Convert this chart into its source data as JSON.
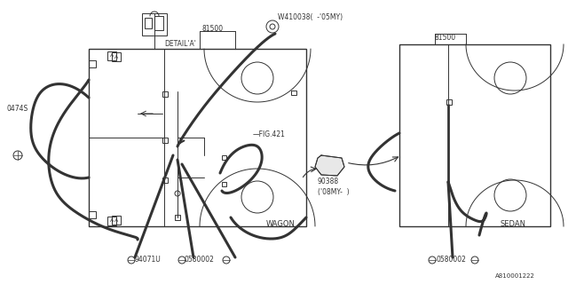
{
  "bg_color": "#ffffff",
  "lc": "#333333",
  "fig_w": 6.4,
  "fig_h": 3.2,
  "dpi": 100,
  "labels": {
    "81500_left": [
      228,
      18,
      "81500"
    ],
    "81500_right": [
      490,
      43,
      "81500"
    ],
    "W410038": [
      310,
      13,
      "W410038(  -’05MY)"
    ],
    "detail_a": [
      185,
      48,
      "DETAIL’A’"
    ],
    "fig421": [
      285,
      148,
      "FIG.421"
    ],
    "0474S": [
      8,
      120,
      "0474S"
    ],
    "94071U": [
      143,
      293,
      "94071U"
    ],
    "0580002_left": [
      208,
      293,
      "0580002"
    ],
    "0580002_right": [
      490,
      293,
      "0580002"
    ],
    "wagon": [
      300,
      248,
      "WAGON"
    ],
    "sedan": [
      565,
      248,
      "SEDAN"
    ],
    "90388": [
      360,
      185,
      "90388\n(’08MY-  )"
    ],
    "A810001222": [
      558,
      312,
      "A810001222"
    ]
  }
}
